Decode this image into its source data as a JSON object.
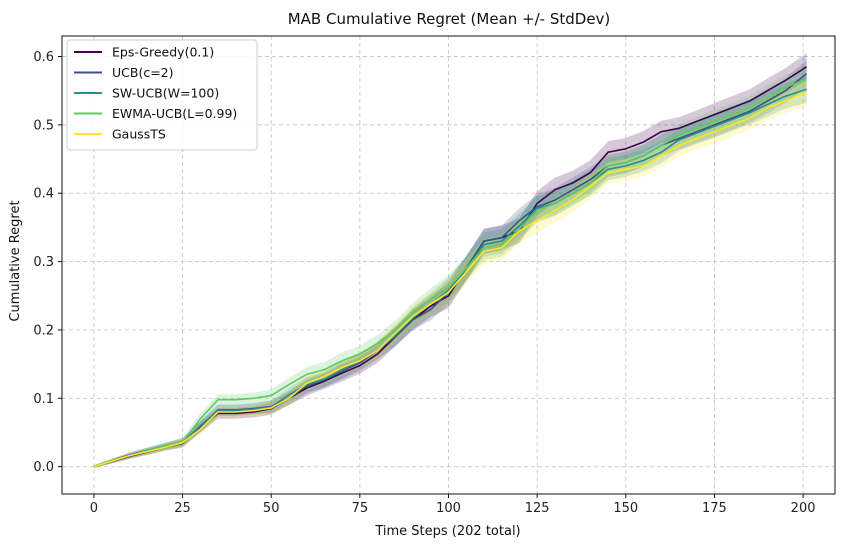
{
  "chart_data": {
    "type": "line",
    "title": "MAB Cumulative Regret (Mean +/- StdDev)",
    "xlabel": "Time Steps (202 total)",
    "ylabel": "Cumulative Regret",
    "xlim": [
      -9,
      209
    ],
    "ylim": [
      -0.04,
      0.63
    ],
    "xticks": [
      0,
      25,
      50,
      75,
      100,
      125,
      150,
      175,
      200
    ],
    "yticks": [
      0.0,
      0.1,
      0.2,
      0.3,
      0.4,
      0.5,
      0.6
    ],
    "grid": true,
    "legend_position": "top-left",
    "x": [
      0,
      10,
      20,
      25,
      30,
      35,
      40,
      45,
      50,
      55,
      60,
      65,
      70,
      75,
      80,
      85,
      90,
      95,
      100,
      105,
      110,
      115,
      120,
      125,
      130,
      135,
      140,
      145,
      150,
      155,
      160,
      165,
      170,
      175,
      180,
      185,
      190,
      195,
      201
    ],
    "series": [
      {
        "name": "Eps-Greedy(0.1)",
        "color": "#440154",
        "values": [
          0.0,
          0.015,
          0.028,
          0.034,
          0.058,
          0.078,
          0.078,
          0.08,
          0.085,
          0.1,
          0.115,
          0.125,
          0.137,
          0.148,
          0.165,
          0.19,
          0.215,
          0.235,
          0.25,
          0.29,
          0.33,
          0.335,
          0.345,
          0.385,
          0.405,
          0.415,
          0.43,
          0.46,
          0.465,
          0.475,
          0.49,
          0.495,
          0.505,
          0.515,
          0.525,
          0.535,
          0.55,
          0.565,
          0.585
        ],
        "std": [
          0.002,
          0.004,
          0.005,
          0.006,
          0.008,
          0.008,
          0.008,
          0.008,
          0.009,
          0.01,
          0.011,
          0.011,
          0.012,
          0.012,
          0.013,
          0.014,
          0.015,
          0.016,
          0.018,
          0.018,
          0.018,
          0.018,
          0.018,
          0.018,
          0.018,
          0.018,
          0.018,
          0.016,
          0.016,
          0.016,
          0.016,
          0.016,
          0.016,
          0.017,
          0.017,
          0.017,
          0.018,
          0.018,
          0.02
        ]
      },
      {
        "name": "UCB(c=2)",
        "color": "#3b528b",
        "values": [
          0.0,
          0.017,
          0.03,
          0.036,
          0.058,
          0.083,
          0.083,
          0.085,
          0.088,
          0.1,
          0.118,
          0.127,
          0.14,
          0.152,
          0.17,
          0.19,
          0.215,
          0.23,
          0.255,
          0.29,
          0.33,
          0.335,
          0.36,
          0.38,
          0.39,
          0.405,
          0.42,
          0.44,
          0.445,
          0.455,
          0.47,
          0.48,
          0.49,
          0.5,
          0.51,
          0.52,
          0.535,
          0.55,
          0.575
        ],
        "std": [
          0.002,
          0.004,
          0.005,
          0.006,
          0.008,
          0.008,
          0.008,
          0.008,
          0.009,
          0.01,
          0.011,
          0.011,
          0.012,
          0.012,
          0.013,
          0.014,
          0.015,
          0.016,
          0.018,
          0.018,
          0.018,
          0.018,
          0.018,
          0.018,
          0.018,
          0.018,
          0.018,
          0.016,
          0.016,
          0.016,
          0.016,
          0.016,
          0.016,
          0.017,
          0.017,
          0.017,
          0.018,
          0.018,
          0.02
        ]
      },
      {
        "name": "SW-UCB(W=100)",
        "color": "#21918c",
        "values": [
          0.0,
          0.016,
          0.029,
          0.035,
          0.06,
          0.082,
          0.082,
          0.084,
          0.087,
          0.105,
          0.12,
          0.128,
          0.142,
          0.155,
          0.17,
          0.192,
          0.218,
          0.238,
          0.258,
          0.29,
          0.325,
          0.33,
          0.352,
          0.378,
          0.385,
          0.4,
          0.415,
          0.435,
          0.44,
          0.448,
          0.46,
          0.478,
          0.488,
          0.498,
          0.508,
          0.518,
          0.53,
          0.542,
          0.552
        ],
        "std": [
          0.002,
          0.004,
          0.005,
          0.006,
          0.008,
          0.008,
          0.008,
          0.008,
          0.009,
          0.01,
          0.011,
          0.011,
          0.012,
          0.012,
          0.013,
          0.014,
          0.015,
          0.016,
          0.018,
          0.018,
          0.018,
          0.018,
          0.018,
          0.018,
          0.018,
          0.018,
          0.018,
          0.016,
          0.016,
          0.016,
          0.016,
          0.016,
          0.016,
          0.017,
          0.017,
          0.017,
          0.018,
          0.018,
          0.02
        ]
      },
      {
        "name": "EWMA-UCB(L=0.99)",
        "color": "#5ec962",
        "values": [
          0.0,
          0.016,
          0.03,
          0.036,
          0.07,
          0.098,
          0.098,
          0.1,
          0.104,
          0.12,
          0.135,
          0.142,
          0.155,
          0.165,
          0.18,
          0.2,
          0.225,
          0.245,
          0.262,
          0.29,
          0.32,
          0.325,
          0.348,
          0.375,
          0.385,
          0.4,
          0.415,
          0.44,
          0.445,
          0.455,
          0.47,
          0.485,
          0.495,
          0.505,
          0.515,
          0.525,
          0.54,
          0.555,
          0.567
        ],
        "std": [
          0.002,
          0.004,
          0.005,
          0.006,
          0.008,
          0.008,
          0.008,
          0.008,
          0.009,
          0.01,
          0.011,
          0.011,
          0.012,
          0.012,
          0.013,
          0.014,
          0.015,
          0.016,
          0.018,
          0.018,
          0.018,
          0.018,
          0.018,
          0.018,
          0.018,
          0.018,
          0.018,
          0.016,
          0.016,
          0.016,
          0.016,
          0.016,
          0.016,
          0.017,
          0.017,
          0.017,
          0.018,
          0.018,
          0.02
        ]
      },
      {
        "name": "GaussTS",
        "color": "#fde725",
        "values": [
          0.0,
          0.016,
          0.028,
          0.035,
          0.055,
          0.08,
          0.08,
          0.082,
          0.086,
          0.1,
          0.122,
          0.132,
          0.145,
          0.155,
          0.17,
          0.195,
          0.22,
          0.238,
          0.255,
          0.285,
          0.315,
          0.32,
          0.345,
          0.36,
          0.375,
          0.39,
          0.41,
          0.43,
          0.435,
          0.44,
          0.455,
          0.47,
          0.48,
          0.49,
          0.5,
          0.51,
          0.525,
          0.535,
          0.548
        ],
        "std": [
          0.002,
          0.004,
          0.005,
          0.006,
          0.008,
          0.008,
          0.008,
          0.008,
          0.009,
          0.01,
          0.011,
          0.011,
          0.012,
          0.012,
          0.013,
          0.014,
          0.015,
          0.016,
          0.018,
          0.018,
          0.018,
          0.018,
          0.018,
          0.018,
          0.018,
          0.018,
          0.018,
          0.016,
          0.016,
          0.016,
          0.016,
          0.016,
          0.016,
          0.017,
          0.017,
          0.017,
          0.018,
          0.018,
          0.02
        ]
      }
    ]
  }
}
